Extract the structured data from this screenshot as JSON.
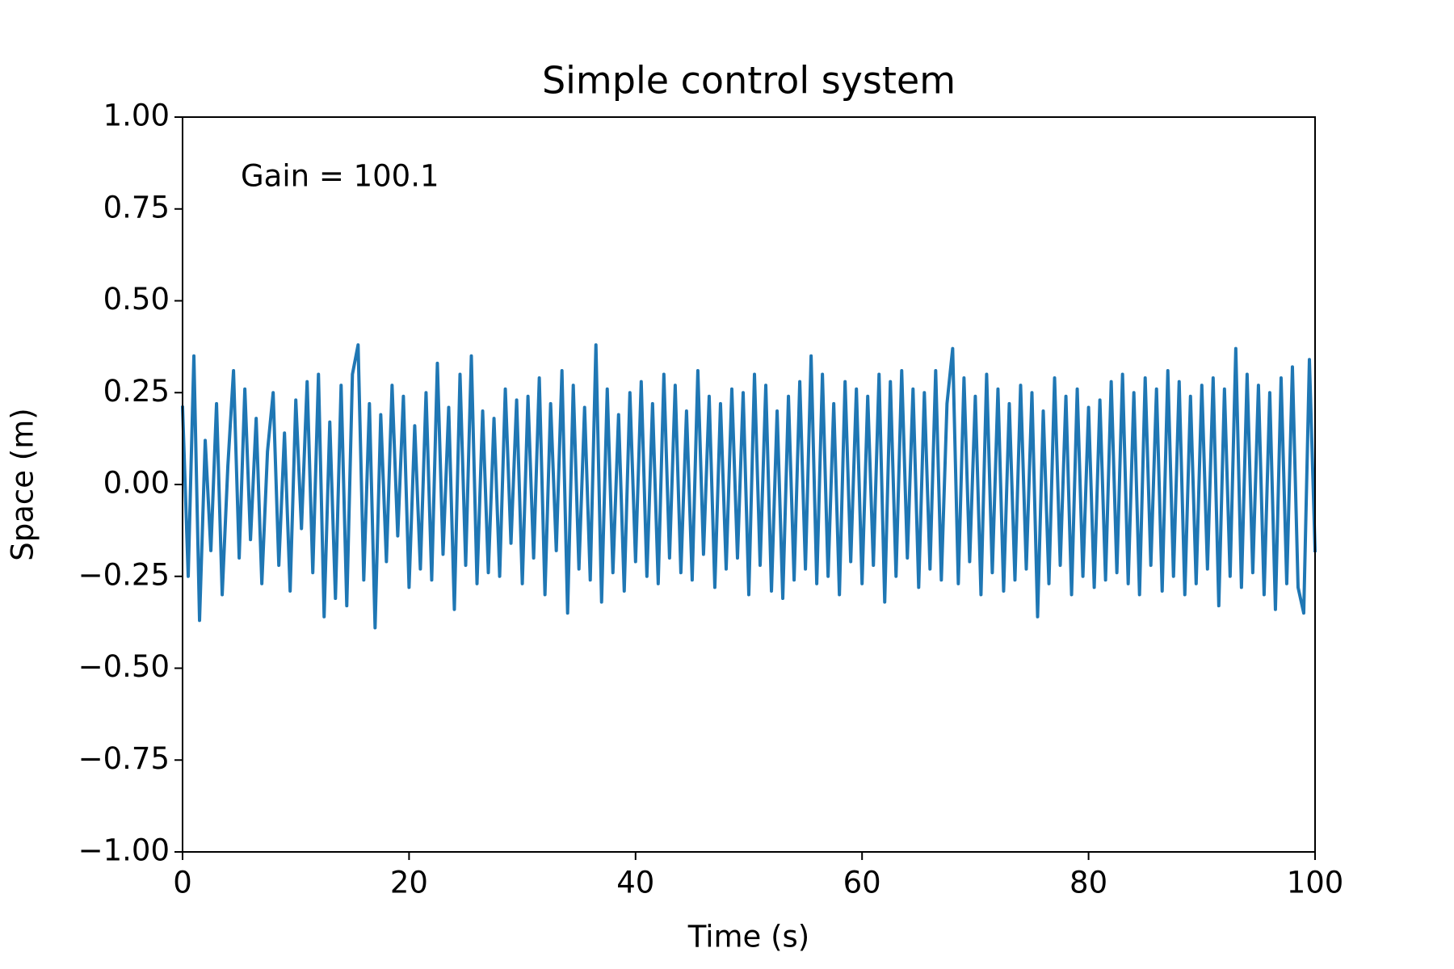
{
  "chart_data": {
    "type": "line",
    "title": "Simple control system",
    "xlabel": "Time (s)",
    "ylabel": "Space (m)",
    "annotation": "Gain = 100.1",
    "x": [
      0,
      0.5,
      1,
      1.5,
      2,
      2.5,
      3,
      3.5,
      4,
      4.5,
      5,
      5.5,
      6,
      6.5,
      7,
      7.5,
      8,
      8.5,
      9,
      9.5,
      10,
      10.5,
      11,
      11.5,
      12,
      12.5,
      13,
      13.5,
      14,
      14.5,
      15,
      15.5,
      16,
      16.5,
      17,
      17.5,
      18,
      18.5,
      19,
      19.5,
      20,
      20.5,
      21,
      21.5,
      22,
      22.5,
      23,
      23.5,
      24,
      24.5,
      25,
      25.5,
      26,
      26.5,
      27,
      27.5,
      28,
      28.5,
      29,
      29.5,
      30,
      30.5,
      31,
      31.5,
      32,
      32.5,
      33,
      33.5,
      34,
      34.5,
      35,
      35.5,
      36,
      36.5,
      37,
      37.5,
      38,
      38.5,
      39,
      39.5,
      40,
      40.5,
      41,
      41.5,
      42,
      42.5,
      43,
      43.5,
      44,
      44.5,
      45,
      45.5,
      46,
      46.5,
      47,
      47.5,
      48,
      48.5,
      49,
      49.5,
      50,
      50.5,
      51,
      51.5,
      52,
      52.5,
      53,
      53.5,
      54,
      54.5,
      55,
      55.5,
      56,
      56.5,
      57,
      57.5,
      58,
      58.5,
      59,
      59.5,
      60,
      60.5,
      61,
      61.5,
      62,
      62.5,
      63,
      63.5,
      64,
      64.5,
      65,
      65.5,
      66,
      66.5,
      67,
      67.5,
      68,
      68.5,
      69,
      69.5,
      70,
      70.5,
      71,
      71.5,
      72,
      72.5,
      73,
      73.5,
      74,
      74.5,
      75,
      75.5,
      76,
      76.5,
      77,
      77.5,
      78,
      78.5,
      79,
      79.5,
      80,
      80.5,
      81,
      81.5,
      82,
      82.5,
      83,
      83.5,
      84,
      84.5,
      85,
      85.5,
      86,
      86.5,
      87,
      87.5,
      88,
      88.5,
      89,
      89.5,
      90,
      90.5,
      91,
      91.5,
      92,
      92.5,
      93,
      93.5,
      94,
      94.5,
      95,
      95.5,
      96,
      96.5,
      97,
      97.5,
      98,
      98.5,
      99,
      99.5,
      100
    ],
    "series": [
      {
        "color": "#1f77b4",
        "values": [
          0.21,
          -0.25,
          0.35,
          -0.37,
          0.12,
          -0.18,
          0.22,
          -0.3,
          0.05,
          0.31,
          -0.2,
          0.26,
          -0.15,
          0.18,
          -0.27,
          0.09,
          0.25,
          -0.22,
          0.14,
          -0.29,
          0.23,
          -0.12,
          0.28,
          -0.24,
          0.3,
          -0.36,
          0.17,
          -0.31,
          0.27,
          -0.33,
          0.3,
          0.38,
          -0.26,
          0.22,
          -0.39,
          0.19,
          -0.21,
          0.27,
          -0.14,
          0.24,
          -0.28,
          0.16,
          -0.23,
          0.25,
          -0.26,
          0.33,
          -0.19,
          0.21,
          -0.34,
          0.3,
          -0.22,
          0.35,
          -0.27,
          0.2,
          -0.24,
          0.18,
          -0.25,
          0.26,
          -0.16,
          0.23,
          -0.27,
          0.24,
          -0.2,
          0.29,
          -0.3,
          0.22,
          -0.18,
          0.31,
          -0.35,
          0.27,
          -0.23,
          0.21,
          -0.26,
          0.38,
          -0.32,
          0.26,
          -0.24,
          0.19,
          -0.29,
          0.25,
          -0.21,
          0.28,
          -0.25,
          0.22,
          -0.27,
          0.3,
          -0.2,
          0.27,
          -0.24,
          0.2,
          -0.26,
          0.31,
          -0.19,
          0.24,
          -0.28,
          0.22,
          -0.23,
          0.26,
          -0.2,
          0.25,
          -0.3,
          0.3,
          -0.22,
          0.27,
          -0.29,
          0.2,
          -0.31,
          0.24,
          -0.26,
          0.28,
          -0.23,
          0.35,
          -0.27,
          0.3,
          -0.25,
          0.22,
          -0.3,
          0.28,
          -0.21,
          0.26,
          -0.27,
          0.24,
          -0.22,
          0.3,
          -0.32,
          0.28,
          -0.25,
          0.31,
          -0.2,
          0.26,
          -0.28,
          0.25,
          -0.23,
          0.31,
          -0.26,
          0.22,
          0.37,
          -0.27,
          0.29,
          -0.21,
          0.24,
          -0.3,
          0.3,
          -0.24,
          0.26,
          -0.29,
          0.22,
          -0.26,
          0.27,
          -0.23,
          0.25,
          -0.36,
          0.2,
          -0.27,
          0.29,
          -0.22,
          0.24,
          -0.3,
          0.26,
          -0.25,
          0.21,
          -0.28,
          0.23,
          -0.26,
          0.28,
          -0.24,
          0.3,
          -0.27,
          0.25,
          -0.3,
          0.29,
          -0.22,
          0.26,
          -0.29,
          0.31,
          -0.25,
          0.28,
          -0.3,
          0.24,
          -0.27,
          0.27,
          -0.23,
          0.29,
          -0.33,
          0.26,
          -0.25,
          0.37,
          -0.28,
          0.3,
          -0.24,
          0.27,
          -0.3,
          0.25,
          -0.34,
          0.29,
          -0.27,
          0.32,
          -0.28,
          -0.35,
          0.34,
          -0.18
        ]
      }
    ],
    "xlim": [
      0,
      100
    ],
    "xticks": [
      0,
      20,
      40,
      60,
      80,
      100
    ],
    "ylim": [
      -1,
      1
    ],
    "yticks": [
      {
        "value": -1,
        "label": "−1.00"
      },
      {
        "value": -0.75,
        "label": "−0.75"
      },
      {
        "value": -0.5,
        "label": "−0.50"
      },
      {
        "value": -0.25,
        "label": "−0.25"
      },
      {
        "value": 0,
        "label": "0.00"
      },
      {
        "value": 0.25,
        "label": "0.25"
      },
      {
        "value": 0.5,
        "label": "0.50"
      },
      {
        "value": 0.75,
        "label": "0.75"
      },
      {
        "value": 1,
        "label": "1.00"
      }
    ],
    "grid": false
  }
}
